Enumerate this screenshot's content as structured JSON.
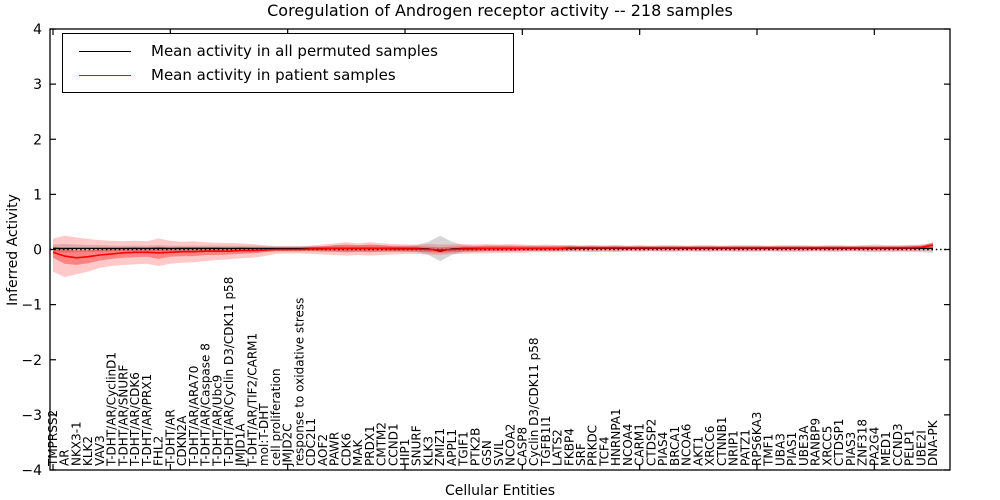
{
  "chart_data": {
    "type": "line",
    "title": "Coregulation of Androgen receptor activity -- 218 samples",
    "xlabel": "Cellular Entities",
    "ylabel": "Inferred Activity",
    "ylim": [
      -4,
      4
    ],
    "yticks": [
      -4,
      -3,
      -2,
      -1,
      0,
      1,
      2,
      3,
      4
    ],
    "xtick_every": 10,
    "grid": false,
    "legend_position": "upper left",
    "zero_line": {
      "style": "dotted",
      "color": "#000000",
      "y": 0
    },
    "categories": [
      "TMPRSS2",
      "AR",
      "NKX3-1",
      "KLK2",
      "VAV3",
      "T-DHT/AR/CyclinD1",
      "T-DHT/AR/SNURF",
      "T-DHT/AR/CDK6",
      "T-DHT/AR/PRX1",
      "FHL2",
      "T-DHT/AR",
      "CDKN2A",
      "T-DHT/AR/ARA70",
      "T-DHT/AR/Caspase 8",
      "T-DHT/AR/Ubc9",
      "T-DHT/AR/Cyclin D3/CDK11 p58",
      "JMJD1A",
      "T-DHT/AR/TIF2/CARM1",
      "mol:T-DHT",
      "cell proliferation",
      "JMJD2C",
      "response to oxidative stress",
      "CDC2L1",
      "AOF2",
      "PAWR",
      "CDK6",
      "MAK",
      "PRDX1",
      "CMTM2",
      "CCND1",
      "HIP1",
      "SNURF",
      "KLK3",
      "ZMIZ1",
      "APPL1",
      "TGIF1",
      "PTK2B",
      "GSN",
      "SVIL",
      "NCOA2",
      "CASP8",
      "Cyclin D3/CDK11 p58",
      "TGFB1I1",
      "LATS2",
      "FKBP4",
      "SRF",
      "PRKDC",
      "TCF4",
      "HNRNPA1",
      "NCOA4",
      "CARM1",
      "CTDSP2",
      "PIAS4",
      "BRCA1",
      "NCOA6",
      "AKT1",
      "XRCC6",
      "CTNNB1",
      "NRIP1",
      "PATZ1",
      "RPS6KA3",
      "TMF1",
      "UBA3",
      "PIAS1",
      "UBE3A",
      "RANBP9",
      "XRCC5",
      "CTDSP1",
      "PIAS3",
      "ZNF318",
      "PA2G4",
      "MED1",
      "CCND3",
      "PELP1",
      "UBE2I",
      "DNA-PK"
    ],
    "series": [
      {
        "name": "Mean activity in all permuted samples",
        "color": "#000000",
        "style": "solid",
        "values": [
          0.02,
          0.02,
          0.02,
          0.02,
          0.02,
          0.02,
          0.02,
          0.02,
          0.02,
          0.02,
          0.02,
          0.02,
          0.02,
          0.02,
          0.02,
          0.02,
          0.02,
          0.02,
          0.02,
          0.02,
          0.02,
          0.02,
          0.02,
          0.02,
          0.02,
          0.02,
          0.02,
          0.02,
          0.02,
          0.02,
          0.02,
          0.02,
          0.01,
          -0.03,
          0.01,
          0.02,
          0.02,
          0.02,
          0.02,
          0.02,
          0.02,
          0.02,
          0.02,
          0.02,
          0.02,
          0.02,
          0.02,
          0.02,
          0.02,
          0.02,
          0.02,
          0.02,
          0.02,
          0.02,
          0.02,
          0.02,
          0.02,
          0.02,
          0.02,
          0.02,
          0.02,
          0.02,
          0.02,
          0.02,
          0.02,
          0.02,
          0.02,
          0.02,
          0.02,
          0.02,
          0.02,
          0.02,
          0.02,
          0.02,
          0.02,
          0.02
        ]
      },
      {
        "name": "Mean activity in patient samples",
        "color": "#ff0000",
        "style": "solid",
        "values": [
          -0.05,
          -0.12,
          -0.15,
          -0.13,
          -0.1,
          -0.08,
          -0.06,
          -0.05,
          -0.05,
          -0.06,
          -0.05,
          -0.04,
          -0.04,
          -0.03,
          -0.03,
          -0.03,
          -0.02,
          -0.02,
          -0.01,
          0.0,
          0.0,
          0.0,
          0.01,
          0.01,
          0.02,
          0.02,
          0.02,
          0.02,
          0.02,
          0.01,
          0.01,
          0.01,
          0.0,
          -0.01,
          0.0,
          0.01,
          0.01,
          0.02,
          0.02,
          0.02,
          0.02,
          0.02,
          0.02,
          0.02,
          0.03,
          0.03,
          0.03,
          0.03,
          0.03,
          0.03,
          0.03,
          0.03,
          0.03,
          0.03,
          0.03,
          0.03,
          0.03,
          0.03,
          0.03,
          0.03,
          0.03,
          0.03,
          0.03,
          0.03,
          0.03,
          0.03,
          0.03,
          0.03,
          0.03,
          0.03,
          0.03,
          0.03,
          0.03,
          0.03,
          0.04,
          0.08
        ]
      }
    ],
    "bands": [
      {
        "name": "permuted-range-band",
        "color": "#999999",
        "opacity": 0.4,
        "upper": [
          0.09,
          0.1,
          0.09,
          0.08,
          0.08,
          0.07,
          0.07,
          0.07,
          0.07,
          0.08,
          0.07,
          0.07,
          0.07,
          0.07,
          0.07,
          0.07,
          0.07,
          0.07,
          0.06,
          0.06,
          0.06,
          0.06,
          0.06,
          0.06,
          0.07,
          0.07,
          0.07,
          0.07,
          0.07,
          0.07,
          0.07,
          0.08,
          0.14,
          0.25,
          0.14,
          0.08,
          0.07,
          0.07,
          0.07,
          0.07,
          0.07,
          0.07,
          0.07,
          0.07,
          0.07,
          0.07,
          0.08,
          0.07,
          0.08,
          0.07,
          0.08,
          0.07,
          0.08,
          0.08,
          0.07,
          0.08,
          0.08,
          0.07,
          0.08,
          0.08,
          0.08,
          0.07,
          0.08,
          0.08,
          0.08,
          0.07,
          0.08,
          0.08,
          0.07,
          0.08,
          0.09,
          0.08,
          0.08,
          0.08,
          0.09,
          0.1
        ],
        "lower": [
          -0.05,
          -0.06,
          -0.05,
          -0.04,
          -0.04,
          -0.03,
          -0.03,
          -0.03,
          -0.03,
          -0.04,
          -0.03,
          -0.03,
          -0.03,
          -0.03,
          -0.03,
          -0.03,
          -0.03,
          -0.03,
          -0.02,
          -0.02,
          -0.02,
          -0.02,
          -0.02,
          -0.02,
          -0.03,
          -0.03,
          -0.03,
          -0.03,
          -0.03,
          -0.03,
          -0.03,
          -0.04,
          -0.1,
          -0.21,
          -0.1,
          -0.04,
          -0.03,
          -0.03,
          -0.03,
          -0.03,
          -0.03,
          -0.03,
          -0.03,
          -0.03,
          -0.03,
          -0.03,
          -0.04,
          -0.03,
          -0.04,
          -0.03,
          -0.04,
          -0.03,
          -0.04,
          -0.04,
          -0.03,
          -0.04,
          -0.04,
          -0.03,
          -0.04,
          -0.04,
          -0.04,
          -0.03,
          -0.04,
          -0.04,
          -0.04,
          -0.03,
          -0.04,
          -0.04,
          -0.03,
          -0.04,
          -0.05,
          -0.04,
          -0.04,
          -0.04,
          -0.05,
          -0.06
        ]
      },
      {
        "name": "patient-outer-band",
        "color": "#ff3c3c",
        "opacity": 0.28,
        "upper": [
          0.2,
          0.25,
          0.22,
          0.19,
          0.17,
          0.16,
          0.15,
          0.16,
          0.15,
          0.2,
          0.16,
          0.14,
          0.15,
          0.13,
          0.12,
          0.12,
          0.11,
          0.1,
          0.08,
          0.06,
          0.06,
          0.06,
          0.07,
          0.09,
          0.11,
          0.13,
          0.11,
          0.13,
          0.11,
          0.1,
          0.09,
          0.09,
          0.1,
          0.09,
          0.09,
          0.1,
          0.09,
          0.1,
          0.09,
          0.1,
          0.09,
          0.08,
          0.09,
          0.08,
          0.08,
          0.07,
          0.07,
          0.07,
          0.07,
          0.06,
          0.06,
          0.06,
          0.06,
          0.06,
          0.06,
          0.06,
          0.06,
          0.06,
          0.06,
          0.06,
          0.06,
          0.06,
          0.06,
          0.06,
          0.06,
          0.06,
          0.06,
          0.06,
          0.06,
          0.06,
          0.06,
          0.06,
          0.06,
          0.06,
          0.07,
          0.12
        ],
        "lower": [
          -0.4,
          -0.5,
          -0.45,
          -0.4,
          -0.33,
          -0.3,
          -0.28,
          -0.27,
          -0.26,
          -0.3,
          -0.26,
          -0.24,
          -0.23,
          -0.21,
          -0.19,
          -0.18,
          -0.16,
          -0.15,
          -0.12,
          -0.08,
          -0.07,
          -0.07,
          -0.08,
          -0.09,
          -0.1,
          -0.11,
          -0.1,
          -0.11,
          -0.1,
          -0.09,
          -0.08,
          -0.08,
          -0.09,
          -0.1,
          -0.08,
          -0.08,
          -0.07,
          -0.07,
          -0.06,
          -0.06,
          -0.06,
          -0.05,
          -0.05,
          -0.05,
          -0.04,
          -0.04,
          -0.04,
          -0.04,
          -0.04,
          -0.03,
          -0.03,
          -0.03,
          -0.03,
          -0.03,
          -0.03,
          -0.03,
          -0.03,
          -0.03,
          -0.03,
          -0.03,
          -0.03,
          -0.03,
          -0.03,
          -0.03,
          -0.03,
          -0.03,
          -0.03,
          -0.03,
          -0.03,
          -0.03,
          -0.03,
          -0.03,
          -0.03,
          -0.03,
          -0.02,
          -0.03
        ]
      },
      {
        "name": "patient-inner-band",
        "color": "#ff0000",
        "opacity": 0.35,
        "upper": [
          0.05,
          0.02,
          -0.02,
          -0.01,
          0.0,
          0.01,
          0.03,
          0.04,
          0.03,
          0.05,
          0.03,
          0.04,
          0.04,
          0.04,
          0.04,
          0.03,
          0.04,
          0.03,
          0.03,
          0.03,
          0.03,
          0.03,
          0.05,
          0.06,
          0.08,
          0.09,
          0.08,
          0.09,
          0.08,
          0.06,
          0.06,
          0.06,
          0.05,
          0.04,
          0.05,
          0.06,
          0.06,
          0.07,
          0.07,
          0.07,
          0.06,
          0.06,
          0.06,
          0.06,
          0.07,
          0.06,
          0.06,
          0.06,
          0.06,
          0.06,
          0.06,
          0.06,
          0.06,
          0.06,
          0.06,
          0.06,
          0.06,
          0.06,
          0.06,
          0.06,
          0.06,
          0.06,
          0.06,
          0.06,
          0.06,
          0.06,
          0.06,
          0.06,
          0.06,
          0.06,
          0.06,
          0.06,
          0.06,
          0.07,
          0.07,
          0.13
        ],
        "lower": [
          -0.15,
          -0.26,
          -0.28,
          -0.25,
          -0.2,
          -0.17,
          -0.15,
          -0.14,
          -0.13,
          -0.17,
          -0.13,
          -0.12,
          -0.12,
          -0.1,
          -0.1,
          -0.09,
          -0.08,
          -0.07,
          -0.05,
          -0.03,
          -0.03,
          -0.03,
          -0.03,
          -0.04,
          -0.04,
          -0.05,
          -0.04,
          -0.05,
          -0.04,
          -0.04,
          -0.04,
          -0.04,
          -0.05,
          -0.06,
          -0.05,
          -0.04,
          -0.04,
          -0.03,
          -0.03,
          -0.03,
          -0.02,
          -0.02,
          -0.02,
          -0.02,
          -0.01,
          0.0,
          0.0,
          0.0,
          0.0,
          0.0,
          0.0,
          0.0,
          0.0,
          0.0,
          0.0,
          0.0,
          0.0,
          0.0,
          0.0,
          0.0,
          0.0,
          0.0,
          0.0,
          0.0,
          0.0,
          0.0,
          0.0,
          0.0,
          0.0,
          0.0,
          0.0,
          0.0,
          0.0,
          0.01,
          0.01,
          0.03
        ]
      }
    ]
  },
  "colors": {
    "background": "#ffffff",
    "axis": "#000000",
    "permuted_line": "#000000",
    "patient_line": "#ff0000"
  }
}
